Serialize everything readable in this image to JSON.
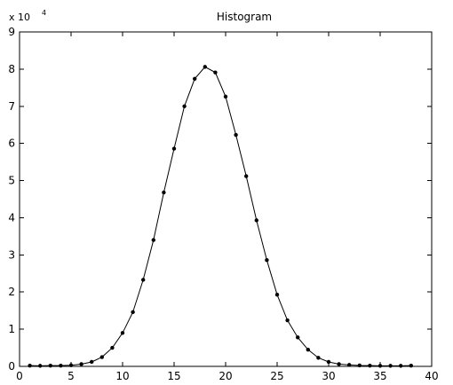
{
  "chart_data": {
    "type": "line",
    "title": "Histogram",
    "xlabel": "",
    "ylabel": "",
    "y_exponent_base": "x 10",
    "y_exponent_power": "4",
    "xlim": [
      0,
      40
    ],
    "ylim": [
      0,
      90000
    ],
    "xticks": [
      0,
      5,
      10,
      15,
      20,
      25,
      30,
      35,
      40
    ],
    "yticks": [
      0,
      10000,
      20000,
      30000,
      40000,
      50000,
      60000,
      70000,
      80000,
      90000
    ],
    "ytick_labels": [
      "0",
      "1",
      "2",
      "3",
      "4",
      "5",
      "6",
      "7",
      "8",
      "9"
    ],
    "grid": false,
    "series": [
      {
        "x": [
          1,
          2,
          3,
          4,
          5,
          6,
          7,
          8,
          9,
          10,
          11,
          12,
          13,
          14,
          15,
          16,
          17,
          18,
          19,
          20,
          21,
          22,
          23,
          24,
          25,
          26,
          27,
          28,
          29,
          30,
          31,
          32,
          33,
          34,
          35,
          36,
          37,
          38
        ],
        "values": [
          200,
          150,
          200,
          200,
          300,
          600,
          1200,
          2500,
          5000,
          9000,
          14600,
          23300,
          34000,
          46800,
          58600,
          70000,
          77400,
          80600,
          79100,
          72600,
          62300,
          51200,
          39300,
          28600,
          19300,
          12400,
          7800,
          4500,
          2300,
          1200,
          600,
          400,
          250,
          200,
          150,
          150,
          150,
          200
        ],
        "color": "#000000",
        "marker": "dot"
      }
    ]
  }
}
